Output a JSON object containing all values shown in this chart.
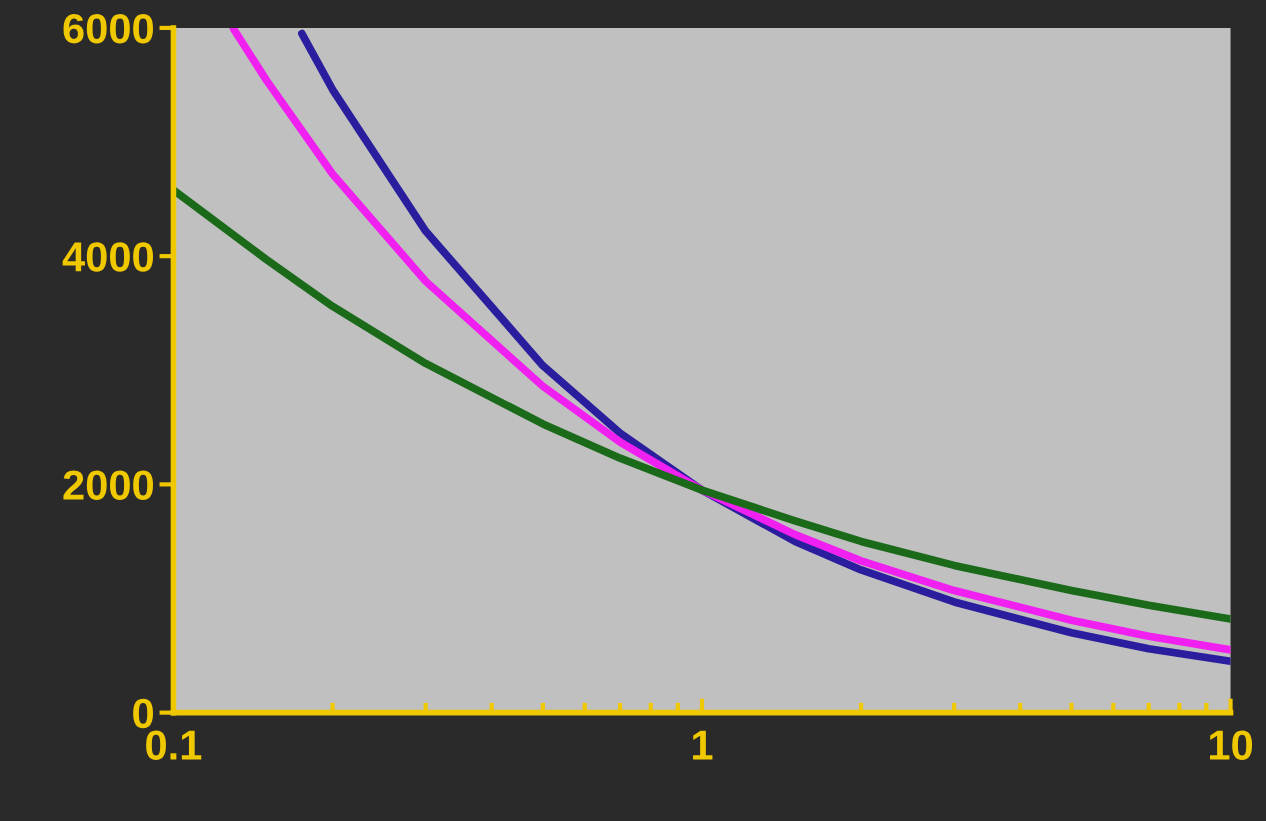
{
  "chart_data": {
    "type": "line",
    "log": "x",
    "grid": false,
    "legend": false,
    "marker": "none",
    "line_style": "solid",
    "xlim": [
      0.1,
      10
    ],
    "xticks": [
      0.1,
      1,
      10
    ],
    "ylim": [
      0,
      6000
    ],
    "yticks": [
      0,
      2000,
      4000,
      6000
    ],
    "series": [
      {
        "color": "#2a1e9e",
        "x": [
          0.175,
          0.2,
          0.3,
          0.5,
          0.7,
          1,
          1.5,
          2,
          3,
          5,
          7,
          10
        ],
        "values": [
          5950,
          5460,
          4220,
          3040,
          2450,
          1950,
          1500,
          1250,
          970,
          700,
          560,
          450
        ]
      },
      {
        "color": "#f020f0",
        "x": [
          0.13,
          0.15,
          0.2,
          0.3,
          0.5,
          0.7,
          1,
          1.5,
          2,
          3,
          5,
          7,
          10
        ],
        "values": [
          5990,
          5540,
          4720,
          3780,
          2860,
          2370,
          1950,
          1560,
          1330,
          1070,
          810,
          670,
          550
        ]
      },
      {
        "color": "#1a6a1a",
        "x": [
          0.1,
          0.15,
          0.2,
          0.3,
          0.5,
          0.7,
          1,
          1.5,
          2,
          3,
          5,
          7,
          10
        ],
        "values": [
          4580,
          3970,
          3560,
          3060,
          2530,
          2230,
          1950,
          1680,
          1500,
          1290,
          1070,
          940,
          820
        ]
      }
    ]
  }
}
